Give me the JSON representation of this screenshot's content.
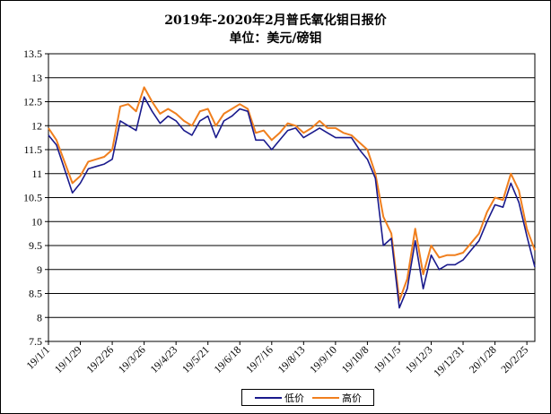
{
  "title": "2019年-2020年2月普氏氧化钼日报价",
  "subtitle": "单位：美元/磅钼",
  "colors": {
    "low": "#1a1a8c",
    "high": "#f07f1e",
    "grid": "#000000"
  },
  "chart_data": {
    "type": "line",
    "title": "2019年-2020年2月普氏氧化钼日报价",
    "subtitle": "单位：美元/磅钼",
    "xlabel": "",
    "ylabel": "",
    "ylim": [
      7.5,
      13.5
    ],
    "y_ticks": [
      "7.5",
      "8",
      "8.5",
      "9",
      "9.5",
      "10",
      "10.5",
      "11",
      "11.5",
      "12",
      "12.5",
      "13",
      "13.5"
    ],
    "x_ticks": [
      "19/1/1",
      "19/1/29",
      "19/2/26",
      "19/3/26",
      "19/4/23",
      "19/5/21",
      "19/6/18",
      "19/7/16",
      "19/8/13",
      "19/9/10",
      "19/10/8",
      "19/11/5",
      "19/12/3",
      "19/12/31",
      "20/1/28",
      "20/2/25"
    ],
    "grid": "horizontal",
    "legend": "bottom-center",
    "x": [
      "19/1/1",
      "19/1/8",
      "19/1/15",
      "19/1/22",
      "19/1/29",
      "19/2/5",
      "19/2/12",
      "19/2/19",
      "19/2/26",
      "19/3/5",
      "19/3/12",
      "19/3/19",
      "19/3/26",
      "19/4/2",
      "19/4/9",
      "19/4/16",
      "19/4/23",
      "19/4/30",
      "19/5/7",
      "19/5/14",
      "19/5/21",
      "19/5/28",
      "19/6/4",
      "19/6/11",
      "19/6/18",
      "19/6/25",
      "19/7/2",
      "19/7/9",
      "19/7/16",
      "19/7/23",
      "19/7/30",
      "19/8/6",
      "19/8/13",
      "19/8/20",
      "19/8/27",
      "19/9/3",
      "19/9/10",
      "19/9/17",
      "19/9/24",
      "19/10/1",
      "19/10/8",
      "19/10/15",
      "19/10/22",
      "19/10/29",
      "19/11/5",
      "19/11/12",
      "19/11/19",
      "19/11/26",
      "19/12/3",
      "19/12/10",
      "19/12/17",
      "19/12/24",
      "19/12/31",
      "20/1/7",
      "20/1/14",
      "20/1/21",
      "20/1/28",
      "20/2/4",
      "20/2/11",
      "20/2/18",
      "20/2/25",
      "20/3/3"
    ],
    "series": [
      {
        "name": "低价",
        "values": [
          11.8,
          11.6,
          11.1,
          10.6,
          10.8,
          11.1,
          11.15,
          11.2,
          11.3,
          12.1,
          12.0,
          11.9,
          12.6,
          12.3,
          12.05,
          12.2,
          12.1,
          11.9,
          11.8,
          12.1,
          12.2,
          11.75,
          12.1,
          12.2,
          12.35,
          12.3,
          11.7,
          11.7,
          11.5,
          11.7,
          11.9,
          11.95,
          11.75,
          11.85,
          11.95,
          11.85,
          11.75,
          11.75,
          11.75,
          11.5,
          11.3,
          10.9,
          9.5,
          9.65,
          8.2,
          8.6,
          9.6,
          8.6,
          9.3,
          9.0,
          9.1,
          9.1,
          9.2,
          9.4,
          9.6,
          10.0,
          10.35,
          10.3,
          10.8,
          10.4,
          9.7,
          9.05
        ]
      },
      {
        "name": "高价",
        "values": [
          11.95,
          11.7,
          11.25,
          10.8,
          10.95,
          11.25,
          11.3,
          11.35,
          11.5,
          12.4,
          12.45,
          12.3,
          12.8,
          12.5,
          12.25,
          12.35,
          12.25,
          12.1,
          12.0,
          12.3,
          12.35,
          12.0,
          12.25,
          12.35,
          12.45,
          12.35,
          11.85,
          11.9,
          11.7,
          11.85,
          12.05,
          12.0,
          11.85,
          11.95,
          12.1,
          11.95,
          11.95,
          11.85,
          11.8,
          11.65,
          11.5,
          11.0,
          10.1,
          9.75,
          8.35,
          8.8,
          9.85,
          8.9,
          9.5,
          9.25,
          9.3,
          9.3,
          9.35,
          9.55,
          9.75,
          10.2,
          10.5,
          10.45,
          11.0,
          10.65,
          9.85,
          9.4
        ]
      }
    ]
  }
}
